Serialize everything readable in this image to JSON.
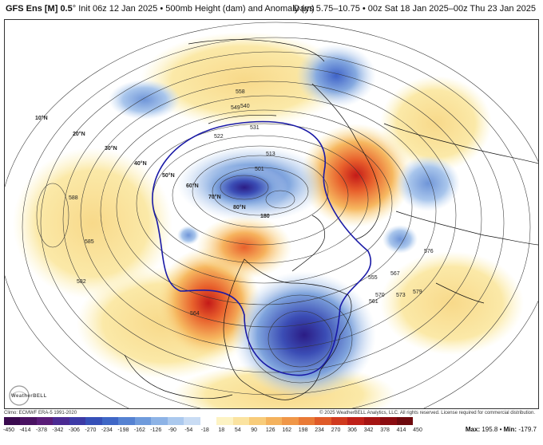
{
  "header": {
    "model": "GFS Ens [M] 0.5",
    "degree": "°",
    "init": "Init 06z 12 Jan 2025",
    "field": "500mb Height (dam) and Anomaly (m)",
    "valid": "Days 5.75–10.75 • 00z Sat 18 Jan 2025–00z Thu 23 Jan 2025"
  },
  "map": {
    "latitude_labels": [
      "10°N",
      "20°N",
      "30°N",
      "40°N",
      "50°N",
      "60°N",
      "70°N",
      "80°N",
      "180"
    ],
    "contour_labels": [
      "501",
      "513",
      "522",
      "531",
      "540",
      "549",
      "555",
      "558",
      "561",
      "564",
      "567",
      "570",
      "573",
      "576",
      "579",
      "582",
      "585",
      "588"
    ],
    "colors": {
      "strong_positive": "#d9201d",
      "positive": "#f29a3a",
      "weak_positive": "#fbe7a0",
      "weak_negative": "#9dbbe6",
      "negative": "#3f63c8",
      "strong_negative": "#2c1f8f",
      "highlight_contour": "#1a1aa6"
    }
  },
  "footer": {
    "logo": "WeatherBELL",
    "climo": "Climo: ECMWF ERA-5 1991-2020",
    "copyright": "© 2025 WeatherBELL Analytics, LLC. All rights reserved. License required for commercial distribution.",
    "max_label": "Max:",
    "max_value": "195.8",
    "min_label": "Min:",
    "min_value": "-179.7"
  },
  "colorbar": {
    "ticks": [
      "-450",
      "-414",
      "-378",
      "-342",
      "-306",
      "-270",
      "-234",
      "-198",
      "-162",
      "-126",
      "-90",
      "-54",
      "-18",
      "18",
      "54",
      "90",
      "126",
      "162",
      "198",
      "234",
      "270",
      "306",
      "342",
      "378",
      "414",
      "450"
    ],
    "colors": [
      "#3a0a4f",
      "#4a1262",
      "#5a1c78",
      "#4b2a92",
      "#3c3aa6",
      "#3650b8",
      "#3f67c6",
      "#5582d2",
      "#6f9bdc",
      "#8db3e6",
      "#abc9ee",
      "#c9dcf4",
      "#ffffff",
      "#fdf3c4",
      "#fbe3a0",
      "#f8cc7a",
      "#f4b25d",
      "#f09748",
      "#e97a36",
      "#df5a28",
      "#d03a1e",
      "#bf2018",
      "#a51412",
      "#8a0c10",
      "#6e0a0e"
    ]
  }
}
